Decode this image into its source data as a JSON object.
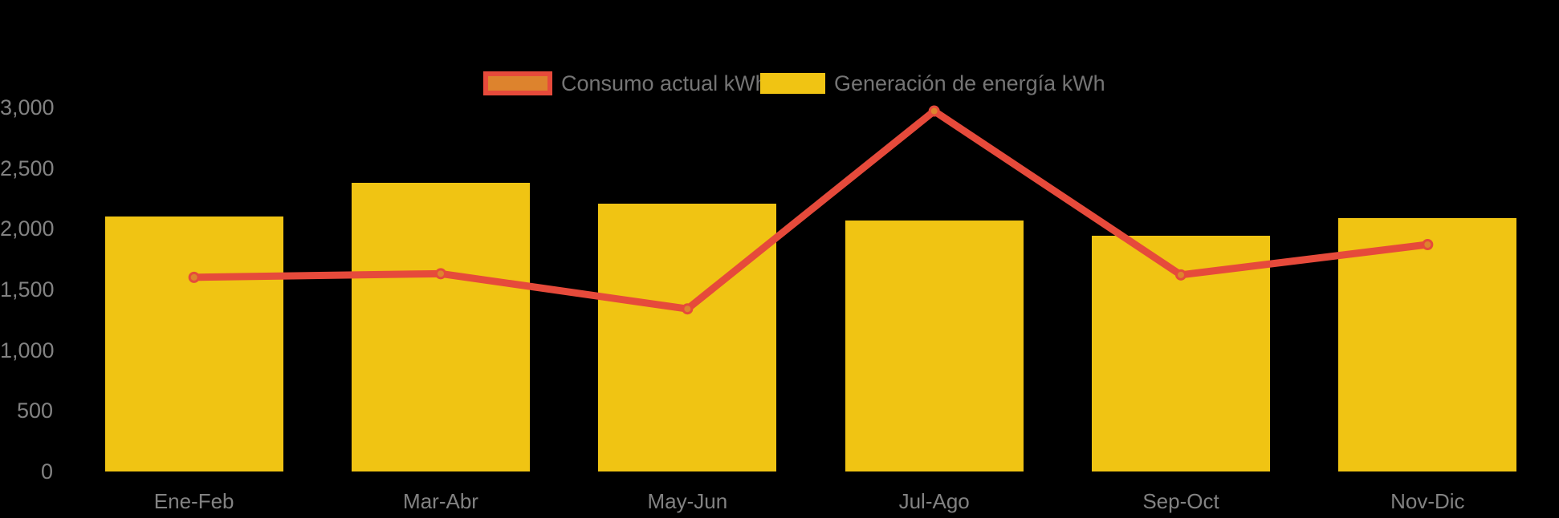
{
  "colors": {
    "background": "#000000",
    "bar_fill": "#F0C413",
    "line_stroke": "#E64A3B",
    "marker_fill": "#DD832D",
    "axis_text": "#828282",
    "legend_text": "#757575"
  },
  "legend": {
    "position": "top",
    "items": [
      {
        "label": "Consumo actual kWh",
        "swatch_fill": "#DD832D",
        "swatch_border": "#E64A3B"
      },
      {
        "label": "Generación de energía kWh",
        "swatch_fill": "#F0C413",
        "swatch_border": "none"
      }
    ]
  },
  "chart_data": {
    "type": "bar",
    "subtype": "bar-and-line-combo",
    "title": "",
    "xlabel": "",
    "ylabel": "",
    "categories": [
      "Ene-Feb",
      "Mar-Abr",
      "May-Jun",
      "Jul-Ago",
      "Sep-Oct",
      "Nov-Dic"
    ],
    "series": [
      {
        "name": "Consumo actual kWh",
        "type": "line",
        "color": "#E64A3B",
        "marker_fill": "#DD832D",
        "values": [
          1600,
          1630,
          1340,
          2970,
          1620,
          1870
        ]
      },
      {
        "name": "Generación de energía kWh",
        "type": "bar",
        "color": "#F0C413",
        "values": [
          2100,
          2380,
          2210,
          2070,
          1940,
          2090
        ]
      }
    ],
    "ylim": [
      0,
      3000
    ],
    "yticks": [
      0,
      500,
      1000,
      1500,
      2000,
      2500,
      3000
    ],
    "ytick_labels": [
      "0",
      "500",
      "1,000",
      "1,500",
      "2,000",
      "2,500",
      "3,000"
    ],
    "grid": false,
    "legend_position": "top"
  }
}
